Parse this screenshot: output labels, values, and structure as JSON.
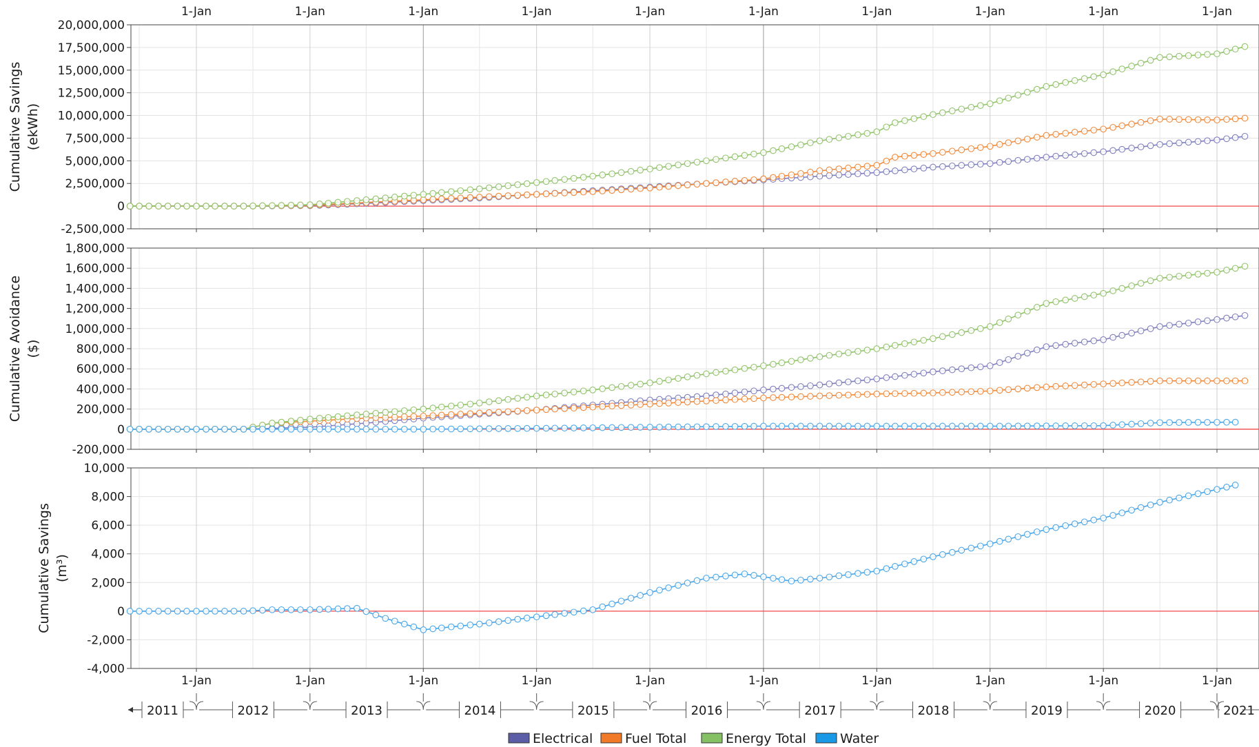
{
  "chart_data": {
    "type": "line",
    "x_tick_label": "1-Jan",
    "x_ticks": [
      "2012-01-01",
      "2013-01-01",
      "2014-01-01",
      "2015-01-01",
      "2016-01-01",
      "2017-01-01",
      "2018-01-01",
      "2019-01-01",
      "2020-01-01",
      "2021-01-01"
    ],
    "xlim": [
      "2011-06-01",
      "2021-04-01"
    ],
    "years": [
      "2011",
      "2012",
      "2013",
      "2014",
      "2015",
      "2016",
      "2017",
      "2018",
      "2019",
      "2020",
      "2021"
    ],
    "marker_step_months": 1,
    "colors": {
      "Electrical": "#7f7fbf",
      "Fuel Total": "#f08a3c",
      "Energy Total": "#92c36b",
      "Water": "#4aa6e8",
      "zero_line": "#f04848"
    },
    "legend": {
      "position": "bottom-center",
      "items": [
        {
          "name": "Electrical",
          "swatch": "#5b5ea6"
        },
        {
          "name": "Fuel Total",
          "swatch": "#f07a28"
        },
        {
          "name": "Energy Total",
          "swatch": "#86c064"
        },
        {
          "name": "Water",
          "swatch": "#1a9ae6"
        }
      ]
    },
    "panels": [
      {
        "ylabel": [
          "Cumulative Savings",
          "(ekWh)"
        ],
        "ylim": [
          -2500000,
          20000000
        ],
        "yticks": [
          -2500000,
          0,
          2500000,
          5000000,
          7500000,
          10000000,
          12500000,
          15000000,
          17500000,
          20000000
        ],
        "series": [
          {
            "name": "Electrical",
            "points": [
              [
                "2011-06-01",
                0
              ],
              [
                "2012-06-01",
                0
              ],
              [
                "2013-01-01",
                50000
              ],
              [
                "2013-07-01",
                300000
              ],
              [
                "2014-01-01",
                600000
              ],
              [
                "2014-07-01",
                900000
              ],
              [
                "2015-01-01",
                1300000
              ],
              [
                "2015-07-01",
                1700000
              ],
              [
                "2016-01-01",
                2100000
              ],
              [
                "2016-07-01",
                2500000
              ],
              [
                "2017-01-01",
                2900000
              ],
              [
                "2017-07-01",
                3300000
              ],
              [
                "2018-01-01",
                3700000
              ],
              [
                "2018-07-01",
                4300000
              ],
              [
                "2019-01-01",
                4700000
              ],
              [
                "2019-07-01",
                5400000
              ],
              [
                "2020-01-01",
                6000000
              ],
              [
                "2020-07-01",
                6800000
              ],
              [
                "2021-01-01",
                7300000
              ],
              [
                "2021-04-01",
                7700000
              ]
            ]
          },
          {
            "name": "Fuel Total",
            "points": [
              [
                "2011-06-01",
                0
              ],
              [
                "2012-06-01",
                0
              ],
              [
                "2013-01-01",
                100000
              ],
              [
                "2013-07-01",
                400000
              ],
              [
                "2014-01-01",
                700000
              ],
              [
                "2014-07-01",
                1000000
              ],
              [
                "2015-01-01",
                1300000
              ],
              [
                "2015-07-01",
                1600000
              ],
              [
                "2016-01-01",
                2000000
              ],
              [
                "2016-07-01",
                2500000
              ],
              [
                "2017-01-01",
                3000000
              ],
              [
                "2017-07-01",
                3900000
              ],
              [
                "2018-01-01",
                4500000
              ],
              [
                "2018-03-01",
                5400000
              ],
              [
                "2018-07-01",
                5800000
              ],
              [
                "2019-01-01",
                6600000
              ],
              [
                "2019-07-01",
                7800000
              ],
              [
                "2020-01-01",
                8500000
              ],
              [
                "2020-07-01",
                9600000
              ],
              [
                "2021-01-01",
                9500000
              ],
              [
                "2021-04-01",
                9700000
              ]
            ]
          },
          {
            "name": "Energy Total",
            "points": [
              [
                "2011-06-01",
                0
              ],
              [
                "2012-06-01",
                0
              ],
              [
                "2013-01-01",
                150000
              ],
              [
                "2013-07-01",
                700000
              ],
              [
                "2014-01-01",
                1300000
              ],
              [
                "2014-07-01",
                1900000
              ],
              [
                "2015-01-01",
                2600000
              ],
              [
                "2015-07-01",
                3300000
              ],
              [
                "2016-01-01",
                4100000
              ],
              [
                "2016-07-01",
                5000000
              ],
              [
                "2017-01-01",
                5900000
              ],
              [
                "2017-07-01",
                7200000
              ],
              [
                "2018-01-01",
                8200000
              ],
              [
                "2018-03-01",
                9200000
              ],
              [
                "2018-07-01",
                10100000
              ],
              [
                "2019-01-01",
                11300000
              ],
              [
                "2019-07-01",
                13200000
              ],
              [
                "2020-01-01",
                14500000
              ],
              [
                "2020-07-01",
                16400000
              ],
              [
                "2021-01-01",
                16800000
              ],
              [
                "2021-04-01",
                17600000
              ]
            ]
          }
        ]
      },
      {
        "ylabel": [
          "Cumulative Avoidance",
          "($)"
        ],
        "ylim": [
          -200000,
          1800000
        ],
        "yticks": [
          -200000,
          0,
          200000,
          400000,
          600000,
          800000,
          1000000,
          1200000,
          1400000,
          1600000,
          1800000
        ],
        "series": [
          {
            "name": "Electrical",
            "points": [
              [
                "2011-06-01",
                0
              ],
              [
                "2012-06-01",
                0
              ],
              [
                "2013-01-01",
                20000
              ],
              [
                "2013-07-01",
                60000
              ],
              [
                "2014-01-01",
                110000
              ],
              [
                "2014-07-01",
                150000
              ],
              [
                "2015-01-01",
                190000
              ],
              [
                "2015-07-01",
                240000
              ],
              [
                "2016-01-01",
                290000
              ],
              [
                "2016-07-01",
                330000
              ],
              [
                "2017-01-01",
                390000
              ],
              [
                "2017-07-01",
                440000
              ],
              [
                "2018-01-01",
                500000
              ],
              [
                "2018-07-01",
                570000
              ],
              [
                "2019-01-01",
                630000
              ],
              [
                "2019-07-01",
                820000
              ],
              [
                "2020-01-01",
                890000
              ],
              [
                "2020-07-01",
                1020000
              ],
              [
                "2021-01-01",
                1090000
              ],
              [
                "2021-04-01",
                1130000
              ]
            ]
          },
          {
            "name": "Fuel Total",
            "points": [
              [
                "2011-06-01",
                0
              ],
              [
                "2012-06-01",
                0
              ],
              [
                "2012-09-01",
                60000
              ],
              [
                "2013-01-01",
                80000
              ],
              [
                "2013-07-01",
                110000
              ],
              [
                "2014-01-01",
                130000
              ],
              [
                "2014-07-01",
                160000
              ],
              [
                "2015-01-01",
                190000
              ],
              [
                "2015-07-01",
                220000
              ],
              [
                "2016-01-01",
                250000
              ],
              [
                "2016-07-01",
                280000
              ],
              [
                "2017-01-01",
                310000
              ],
              [
                "2017-07-01",
                330000
              ],
              [
                "2018-01-01",
                350000
              ],
              [
                "2018-07-01",
                360000
              ],
              [
                "2019-01-01",
                380000
              ],
              [
                "2019-07-01",
                420000
              ],
              [
                "2020-01-01",
                450000
              ],
              [
                "2020-07-01",
                480000
              ],
              [
                "2021-01-01",
                480000
              ],
              [
                "2021-04-01",
                480000
              ]
            ]
          },
          {
            "name": "Energy Total",
            "points": [
              [
                "2011-06-01",
                0
              ],
              [
                "2012-06-01",
                0
              ],
              [
                "2012-09-01",
                60000
              ],
              [
                "2013-01-01",
                100000
              ],
              [
                "2013-07-01",
                150000
              ],
              [
                "2014-01-01",
                200000
              ],
              [
                "2014-07-01",
                260000
              ],
              [
                "2015-01-01",
                330000
              ],
              [
                "2015-07-01",
                390000
              ],
              [
                "2016-01-01",
                460000
              ],
              [
                "2016-07-01",
                550000
              ],
              [
                "2017-01-01",
                630000
              ],
              [
                "2017-07-01",
                720000
              ],
              [
                "2018-01-01",
                800000
              ],
              [
                "2018-07-01",
                900000
              ],
              [
                "2019-01-01",
                1020000
              ],
              [
                "2019-07-01",
                1250000
              ],
              [
                "2020-01-01",
                1350000
              ],
              [
                "2020-07-01",
                1500000
              ],
              [
                "2021-01-01",
                1560000
              ],
              [
                "2021-04-01",
                1620000
              ]
            ]
          },
          {
            "name": "Water",
            "points": [
              [
                "2011-06-01",
                0
              ],
              [
                "2014-01-01",
                0
              ],
              [
                "2015-01-01",
                8000
              ],
              [
                "2016-01-01",
                20000
              ],
              [
                "2017-01-01",
                30000
              ],
              [
                "2018-01-01",
                30000
              ],
              [
                "2019-01-01",
                30000
              ],
              [
                "2020-01-01",
                35000
              ],
              [
                "2020-07-01",
                65000
              ],
              [
                "2021-03-01",
                70000
              ]
            ]
          }
        ]
      },
      {
        "ylabel": [
          "Cumulative Savings",
          "(m³)"
        ],
        "ylim": [
          -4000,
          10000
        ],
        "yticks": [
          -4000,
          -2000,
          0,
          2000,
          4000,
          6000,
          8000,
          10000
        ],
        "series": [
          {
            "name": "Water",
            "points": [
              [
                "2011-06-01",
                0
              ],
              [
                "2012-01-01",
                0
              ],
              [
                "2012-06-01",
                0
              ],
              [
                "2012-09-01",
                100
              ],
              [
                "2013-01-01",
                100
              ],
              [
                "2013-06-01",
                200
              ],
              [
                "2013-09-01",
                -500
              ],
              [
                "2014-01-01",
                -1300
              ],
              [
                "2014-07-01",
                -900
              ],
              [
                "2015-01-01",
                -400
              ],
              [
                "2015-07-01",
                100
              ],
              [
                "2016-01-01",
                1300
              ],
              [
                "2016-07-01",
                2300
              ],
              [
                "2016-11-01",
                2600
              ],
              [
                "2017-01-01",
                2400
              ],
              [
                "2017-04-01",
                2100
              ],
              [
                "2017-07-01",
                2300
              ],
              [
                "2018-01-01",
                2800
              ],
              [
                "2018-07-01",
                3800
              ],
              [
                "2019-01-01",
                4700
              ],
              [
                "2019-07-01",
                5700
              ],
              [
                "2020-01-01",
                6500
              ],
              [
                "2020-07-01",
                7600
              ],
              [
                "2021-01-01",
                8500
              ],
              [
                "2021-03-01",
                8800
              ]
            ]
          }
        ]
      }
    ]
  }
}
